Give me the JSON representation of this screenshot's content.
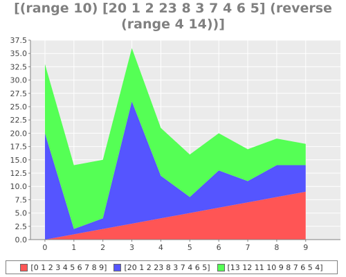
{
  "chart_data": {
    "type": "area",
    "stacked": true,
    "title": "[(range 10) [20 1 2 23 8 3 7 4 6 5] (reverse\n(range 4 14))]",
    "x": [
      0,
      1,
      2,
      3,
      4,
      5,
      6,
      7,
      8,
      9
    ],
    "x_ticks": [
      "0",
      "1",
      "2",
      "3",
      "4",
      "5",
      "6",
      "7",
      "8",
      "9"
    ],
    "ylim": [
      0,
      37.5
    ],
    "y_ticks": [
      "0.0",
      "2.5",
      "5.0",
      "7.5",
      "10.0",
      "12.5",
      "15.0",
      "17.5",
      "20.0",
      "22.5",
      "25.0",
      "27.5",
      "30.0",
      "32.5",
      "35.0",
      "37.5"
    ],
    "grid": true,
    "legend_position": "bottom",
    "series": [
      {
        "name": "[0 1 2 3 4 5 6 7 8 9]",
        "values": [
          0,
          1,
          2,
          3,
          4,
          5,
          6,
          7,
          8,
          9
        ],
        "color": "#ff5555"
      },
      {
        "name": "[20 1 2 23 8 3 7 4 6 5]",
        "values": [
          20,
          1,
          2,
          23,
          8,
          3,
          7,
          4,
          6,
          5
        ],
        "color": "#5555ff"
      },
      {
        "name": "[13 12 11 10 9 8 7 6 5 4]",
        "values": [
          13,
          12,
          11,
          10,
          9,
          8,
          7,
          6,
          5,
          4
        ],
        "color": "#55ff55"
      }
    ],
    "plot_background": "#ebebeb"
  }
}
